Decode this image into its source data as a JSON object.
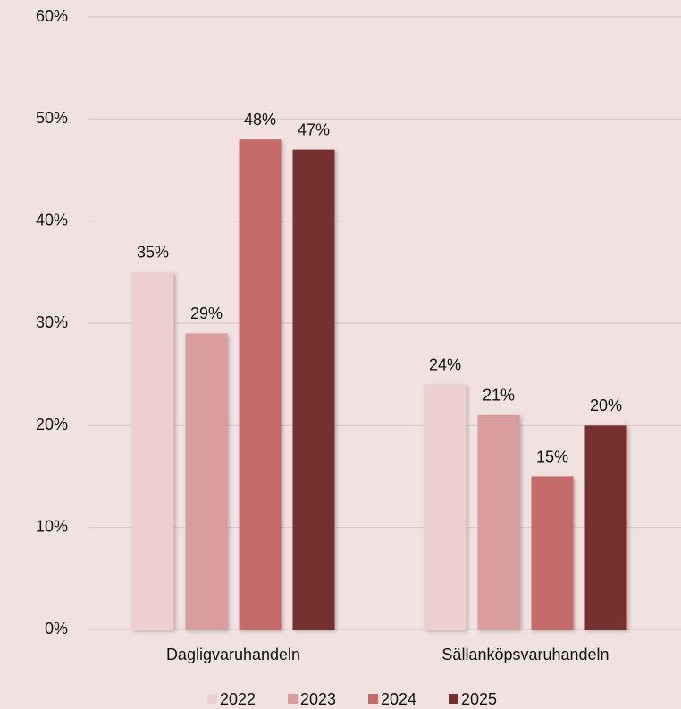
{
  "chart_data": {
    "type": "bar",
    "categories": [
      "Dagligvaruhandeln",
      "Sällanköpsvaruhandeln"
    ],
    "series": [
      {
        "name": "2022",
        "color": "#edcfcf",
        "values": [
          35,
          24
        ],
        "value_labels": [
          "35%",
          "24%"
        ]
      },
      {
        "name": "2023",
        "color": "#d89d9c",
        "values": [
          29,
          21
        ],
        "value_labels": [
          "29%",
          "21%"
        ]
      },
      {
        "name": "2024",
        "color": "#c46b6a",
        "values": [
          48,
          15
        ],
        "value_labels": [
          "48%",
          "15%"
        ]
      },
      {
        "name": "2025",
        "color": "#76302f",
        "values": [
          47,
          20
        ],
        "value_labels": [
          "47%",
          "20%"
        ]
      }
    ],
    "ylim": [
      0,
      60
    ],
    "yticks": [
      {
        "value": 0,
        "label": "0%"
      },
      {
        "value": 10,
        "label": "10%"
      },
      {
        "value": 20,
        "label": "20%"
      },
      {
        "value": 30,
        "label": "30%"
      },
      {
        "value": 40,
        "label": "40%"
      },
      {
        "value": 50,
        "label": "50%"
      },
      {
        "value": 60,
        "label": "60%"
      }
    ],
    "grid": true,
    "legend": "bottom"
  }
}
